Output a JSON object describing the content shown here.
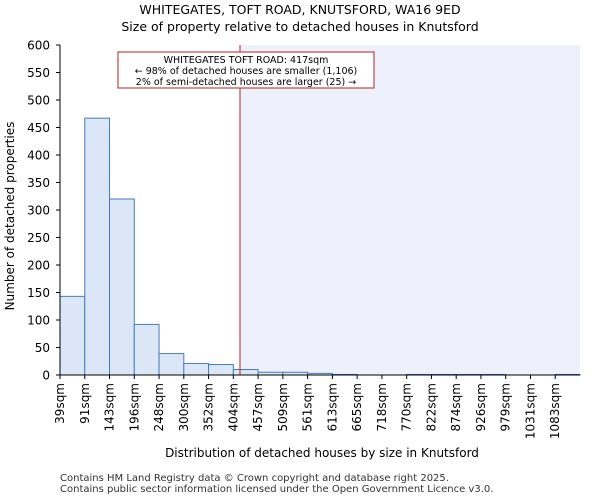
{
  "header": {
    "title": "WHITEGATES, TOFT ROAD, KNUTSFORD, WA16 9ED",
    "subtitle": "Size of property relative to detached houses in Knutsford"
  },
  "footer": {
    "line1": "Contains HM Land Registry data © Crown copyright and database right 2025.",
    "line2": "Contains public sector information licensed under the Open Government Licence v3.0."
  },
  "chart_data": {
    "type": "bar",
    "title": "WHITEGATES, TOFT ROAD, KNUTSFORD, WA16 9ED",
    "subtitle": "Size of property relative to detached houses in Knutsford",
    "xlabel": "Distribution of detached houses by size in Knutsford",
    "ylabel": "Number of detached properties",
    "ylim": [
      0,
      600
    ],
    "yticks": [
      0,
      50,
      100,
      150,
      200,
      250,
      300,
      350,
      400,
      450,
      500,
      550,
      600
    ],
    "categories": [
      "39sqm",
      "91sqm",
      "143sqm",
      "196sqm",
      "248sqm",
      "300sqm",
      "352sqm",
      "404sqm",
      "457sqm",
      "509sqm",
      "561sqm",
      "613sqm",
      "665sqm",
      "718sqm",
      "770sqm",
      "822sqm",
      "874sqm",
      "926sqm",
      "979sqm",
      "1031sqm",
      "1083sqm"
    ],
    "values": [
      143,
      467,
      320,
      92,
      39,
      21,
      19,
      10,
      5,
      5,
      3,
      1,
      0,
      0,
      1,
      1,
      1,
      1,
      0,
      0,
      1
    ],
    "bar_color": "#dbe7f7",
    "bar_edge_color": "#4a7ab8",
    "marker": {
      "value_sqm": 417,
      "color": "#b22222",
      "highlight_color": "#eef1fb"
    },
    "annotation": {
      "line1": "WHITEGATES TOFT ROAD: 417sqm",
      "line2": "← 98% of detached houses are smaller (1,106)",
      "line3": "2% of semi-detached houses are larger (25) →"
    },
    "grid": false
  }
}
